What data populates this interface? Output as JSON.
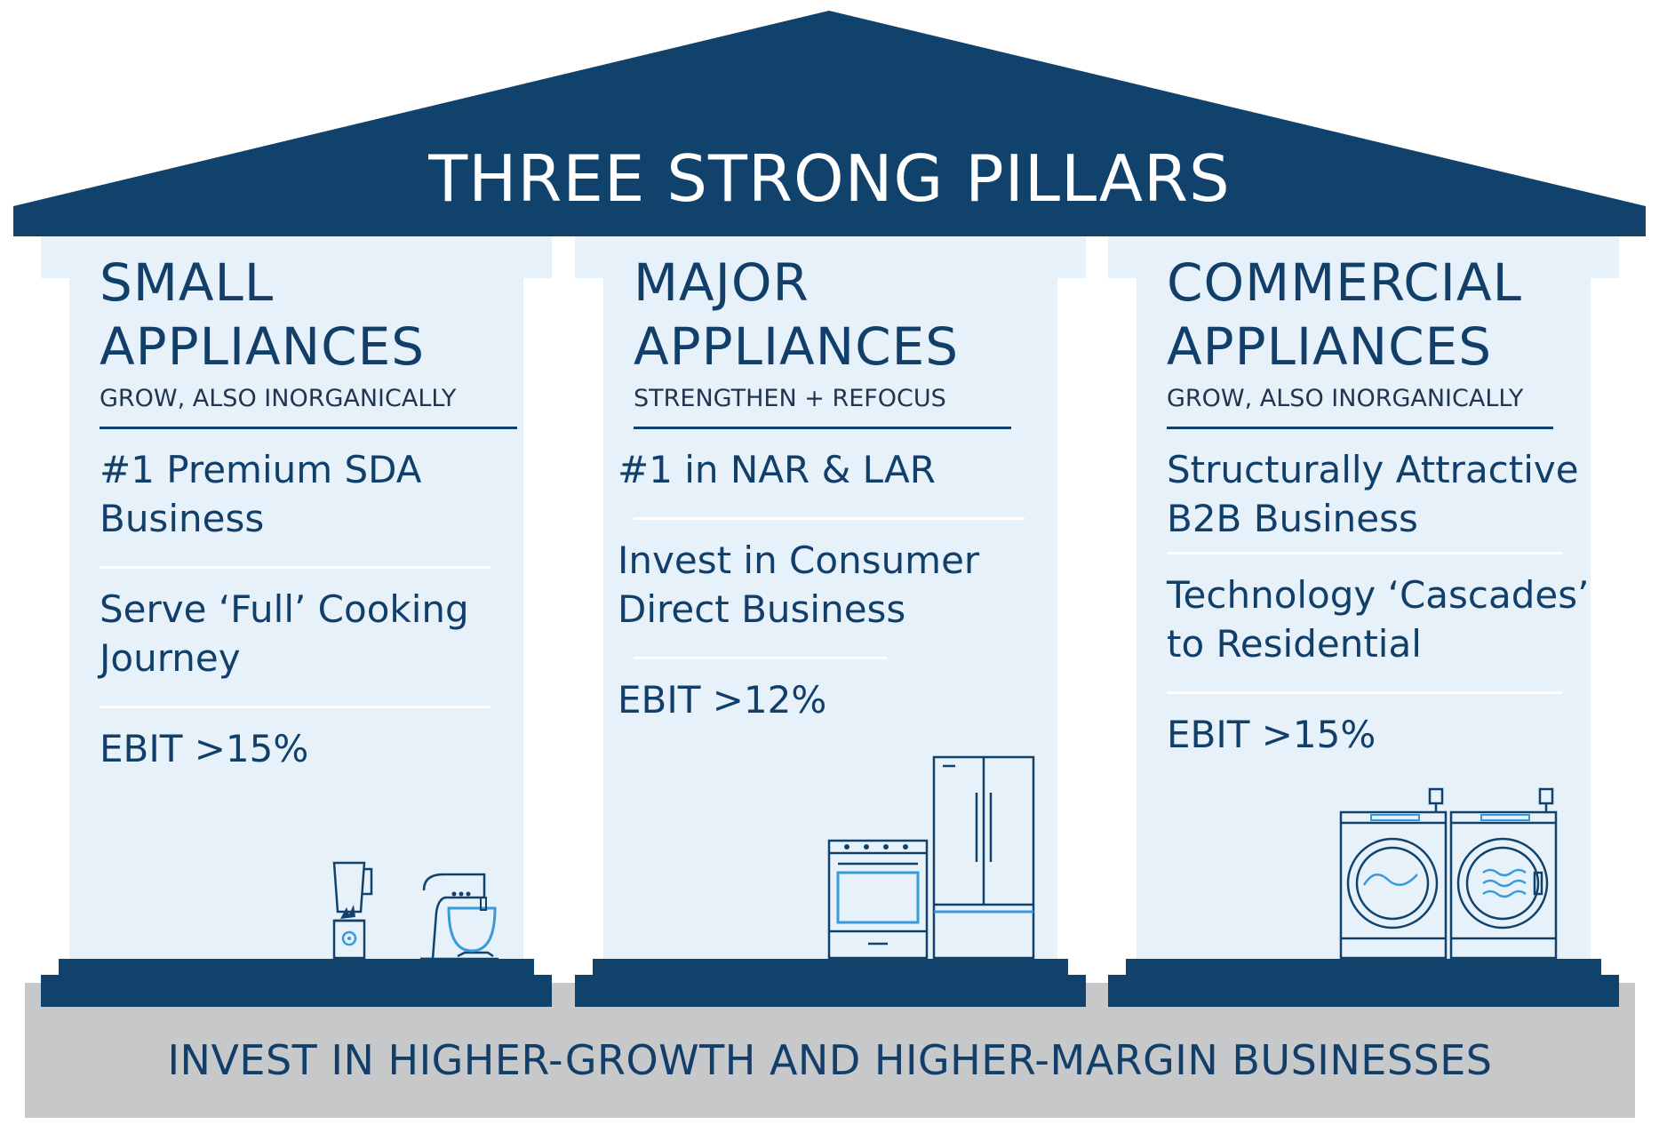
{
  "header": {
    "title": "THREE STRONG PILLARS"
  },
  "pillars": [
    {
      "title_line1": "SMALL",
      "title_line2": "APPLIANCES",
      "subtitle": "GROW, ALSO INORGANICALLY",
      "points": [
        "#1 Premium SDA Business",
        "Serve ‘Full’ Cooking Journey",
        "EBIT >15%"
      ],
      "icons": [
        "blender-icon",
        "stand-mixer-icon"
      ]
    },
    {
      "title_line1": "MAJOR",
      "title_line2": "APPLIANCES",
      "subtitle": "STRENGTHEN + REFOCUS",
      "points": [
        "#1 in NAR & LAR",
        "Invest in Consumer Direct Business",
        "EBIT >12%"
      ],
      "icons": [
        "range-oven-icon",
        "refrigerator-icon"
      ]
    },
    {
      "title_line1": "COMMERCIAL",
      "title_line2": "APPLIANCES",
      "subtitle": "GROW, ALSO INORGANICALLY",
      "points": [
        "Structurally Attractive B2B Business",
        "Technology ‘Cascades’ to Residential",
        "EBIT >15%"
      ],
      "icons": [
        "washer-icon",
        "dryer-icon"
      ]
    }
  ],
  "foundation": {
    "text": "INVEST IN HIGHER-GROWTH AND HIGHER-MARGIN BUSINESSES"
  },
  "colors": {
    "navy": "#11426c",
    "light_blue": "#e7f1fa",
    "gray": "#c7c8ca",
    "icon_accent": "#3a9ad9"
  }
}
